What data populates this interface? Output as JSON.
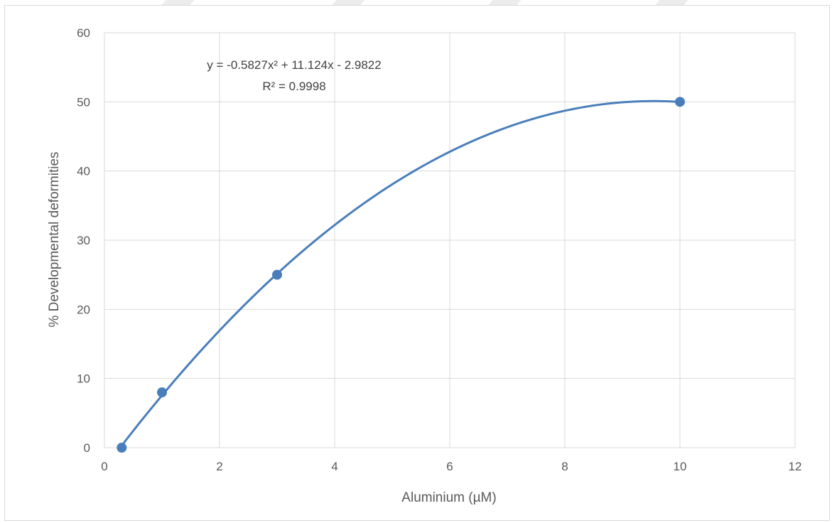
{
  "chart_data": {
    "type": "scatter",
    "title": "",
    "xlabel": "Aluminium (µM)",
    "ylabel": "% Developmental deformities",
    "xlim": [
      0,
      12
    ],
    "ylim": [
      0,
      60
    ],
    "x_ticks": [
      0,
      2,
      4,
      6,
      8,
      10,
      12
    ],
    "y_ticks": [
      0,
      10,
      20,
      30,
      40,
      50,
      60
    ],
    "x_tick_labels": [
      "0",
      "2",
      "4",
      "6",
      "8",
      "10",
      "12"
    ],
    "y_tick_labels": [
      "0",
      "10",
      "20",
      "30",
      "40",
      "50",
      "60"
    ],
    "grid": true,
    "legend": "none",
    "series": [
      {
        "points": [
          {
            "x": 0.3,
            "y": 0
          },
          {
            "x": 1,
            "y": 8
          },
          {
            "x": 3,
            "y": 25
          },
          {
            "x": 10,
            "y": 50
          }
        ],
        "color": "#4a7ebb"
      }
    ],
    "trendline": {
      "type": "polynomial",
      "order": 2,
      "coefficients": {
        "a": -0.5827,
        "b": 11.124,
        "c": -2.9822
      },
      "x_range": [
        0.3,
        10
      ],
      "color": "#4a7ebb",
      "equation_label": "y = -0.5827x² + 11.124x - 2.9822",
      "r2_label": "R² = 0.9998"
    }
  },
  "colors": {
    "series": "#4a7ebb",
    "grid": "#d9d9d9",
    "text": "#595959",
    "frame": "#d9d9d9"
  }
}
